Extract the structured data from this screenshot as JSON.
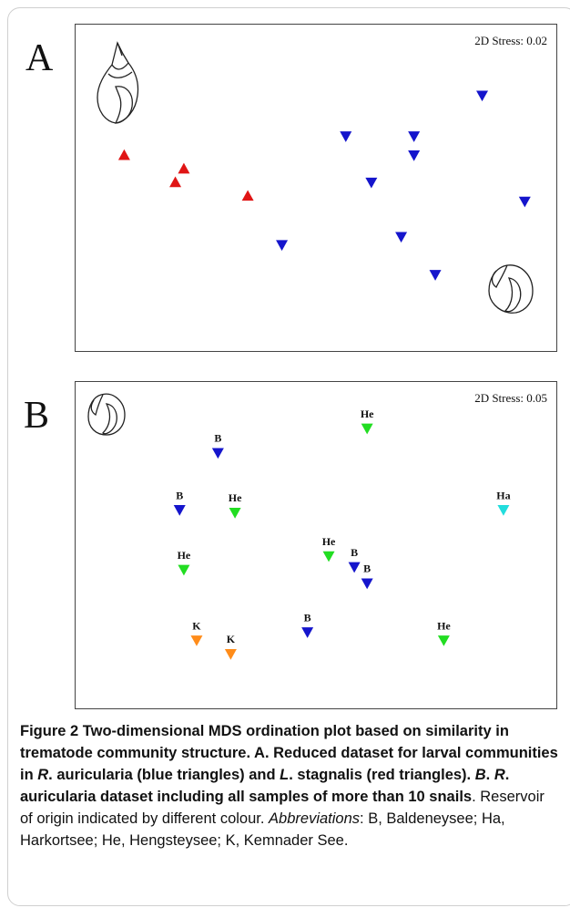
{
  "figure": {
    "panel_a": {
      "letter": "A",
      "stress_label": "2D Stress: 0.02",
      "chart_data": {
        "type": "scatter",
        "title": "",
        "xlabel": "",
        "ylabel": "",
        "grid": false,
        "series": [
          {
            "points": [
              {
                "x": 0.05,
                "y": 0.62,
                "marker": "up-triangle",
                "color": "#e01515"
              },
              {
                "x": 0.19,
                "y": 0.57,
                "marker": "up-triangle",
                "color": "#e01515"
              },
              {
                "x": 0.17,
                "y": 0.52,
                "marker": "up-triangle",
                "color": "#e01515"
              },
              {
                "x": 0.34,
                "y": 0.47,
                "marker": "up-triangle",
                "color": "#e01515"
              }
            ]
          },
          {
            "points": [
              {
                "x": 0.89,
                "y": 0.84,
                "marker": "down-triangle",
                "color": "#1515cc"
              },
              {
                "x": 0.57,
                "y": 0.69,
                "marker": "down-triangle",
                "color": "#1515cc"
              },
              {
                "x": 0.73,
                "y": 0.69,
                "marker": "down-triangle",
                "color": "#1515cc"
              },
              {
                "x": 0.73,
                "y": 0.62,
                "marker": "down-triangle",
                "color": "#1515cc"
              },
              {
                "x": 0.63,
                "y": 0.52,
                "marker": "down-triangle",
                "color": "#1515cc"
              },
              {
                "x": 0.99,
                "y": 0.45,
                "marker": "down-triangle",
                "color": "#1515cc"
              },
              {
                "x": 0.7,
                "y": 0.32,
                "marker": "down-triangle",
                "color": "#1515cc"
              },
              {
                "x": 0.42,
                "y": 0.29,
                "marker": "down-triangle",
                "color": "#1515cc"
              },
              {
                "x": 0.78,
                "y": 0.18,
                "marker": "down-triangle",
                "color": "#1515cc"
              }
            ]
          }
        ],
        "icons": [
          "snail-shell-icon",
          "snail-shell-icon"
        ]
      }
    },
    "panel_b": {
      "letter": "B",
      "stress_label": "2D Stress: 0.05",
      "chart_data": {
        "type": "scatter",
        "title": "",
        "xlabel": "",
        "ylabel": "",
        "grid": false,
        "points": [
          {
            "label": "He",
            "x": 0.62,
            "y": 0.93,
            "color": "#22dd22"
          },
          {
            "label": "B",
            "x": 0.27,
            "y": 0.84,
            "color": "#1515cc"
          },
          {
            "label": "B",
            "x": 0.18,
            "y": 0.63,
            "color": "#1515cc"
          },
          {
            "label": "He",
            "x": 0.31,
            "y": 0.62,
            "color": "#22dd22"
          },
          {
            "label": "Ha",
            "x": 0.94,
            "y": 0.63,
            "color": "#22dddd"
          },
          {
            "label": "He",
            "x": 0.53,
            "y": 0.46,
            "color": "#22dd22"
          },
          {
            "label": "He",
            "x": 0.19,
            "y": 0.41,
            "color": "#22dd22"
          },
          {
            "label": "B",
            "x": 0.59,
            "y": 0.42,
            "color": "#1515cc"
          },
          {
            "label": "B",
            "x": 0.62,
            "y": 0.36,
            "color": "#1515cc"
          },
          {
            "label": "B",
            "x": 0.48,
            "y": 0.18,
            "color": "#1515cc"
          },
          {
            "label": "K",
            "x": 0.22,
            "y": 0.15,
            "color": "#ff8c1a"
          },
          {
            "label": "K",
            "x": 0.3,
            "y": 0.1,
            "color": "#ff8c1a"
          },
          {
            "label": "He",
            "x": 0.8,
            "y": 0.15,
            "color": "#22dd22"
          }
        ],
        "icons": [
          "snail-shell-icon"
        ]
      }
    }
  },
  "caption": {
    "label": "Figure 2",
    "title_part1": " Two-dimensional MDS ordination plot based on similarity in trematode community structure. A. Reduced dataset for larval communities in ",
    "r_genus": "R",
    "title_part2": ". auricularia (blue triangles) and ",
    "l_genus": "L",
    "title_part3": ". stagnalis (red triangles). ",
    "b_label": "B",
    "title_part4": ". ",
    "r2_genus": "R",
    "title_part5": ". auricularia dataset including all samples of more than 10 snails",
    "body": ". Reservoir of origin indicated by different colour. ",
    "abbrev_label": "Abbreviations",
    "abbrev_text": ": B, Baldeneysee; Ha, Harkortsee; He, Hengsteysee; K, Kemnader See."
  }
}
